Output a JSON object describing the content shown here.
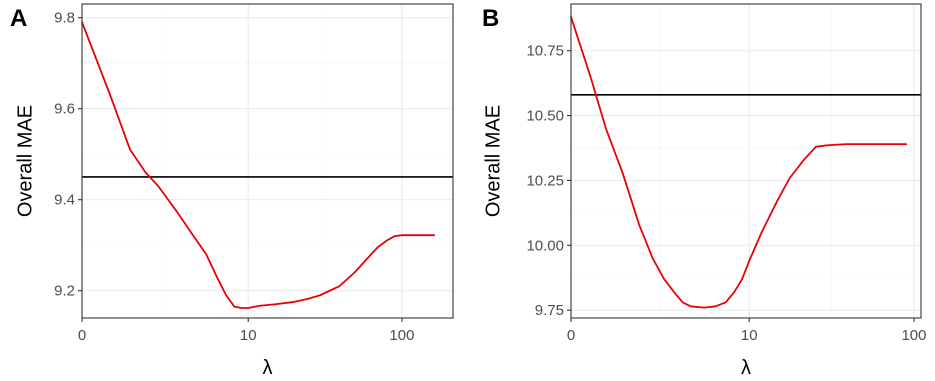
{
  "colors": {
    "curve": "#e8000b",
    "reference": "#000000"
  },
  "chart_data": [
    {
      "type": "line",
      "panel_label": "A",
      "xlabel": "λ",
      "ylabel": "Overall MAE",
      "x_scale": "log1p",
      "x_ticks": [
        0,
        10,
        100
      ],
      "x_tick_labels": [
        "0",
        "10",
        "100"
      ],
      "y_ticks": [
        9.2,
        9.4,
        9.6,
        9.8
      ],
      "y_tick_labels": [
        "9.2",
        "9.4",
        "9.6",
        "9.8"
      ],
      "ylim": [
        9.14,
        9.83
      ],
      "xlim": [
        0,
        210
      ],
      "grid": true,
      "series": [
        {
          "color": "#e8000b",
          "x": [
            0,
            0.5,
            1,
            1.5,
            2,
            3,
            4,
            5,
            6,
            7,
            8,
            9,
            10,
            12,
            15,
            20,
            25,
            30,
            40,
            50,
            60,
            70,
            80,
            90,
            100,
            120,
            140,
            160
          ],
          "y": [
            9.79,
            9.63,
            9.51,
            9.46,
            9.43,
            9.37,
            9.32,
            9.28,
            9.23,
            9.19,
            9.165,
            9.162,
            9.162,
            9.167,
            9.17,
            9.175,
            9.182,
            9.19,
            9.21,
            9.24,
            9.27,
            9.295,
            9.31,
            9.32,
            9.322,
            9.322,
            9.322,
            9.322
          ]
        }
      ],
      "reference_line": {
        "y": 9.45
      }
    },
    {
      "type": "line",
      "panel_label": "B",
      "xlabel": "λ",
      "ylabel": "Overall MAE",
      "x_scale": "log1p",
      "x_ticks": [
        0,
        10,
        100
      ],
      "x_tick_labels": [
        "0",
        "10",
        "100"
      ],
      "y_ticks": [
        9.75,
        10.0,
        10.25,
        10.5,
        10.75
      ],
      "y_tick_labels": [
        "9.75",
        "10.00",
        "10.25",
        "10.50",
        "10.75"
      ],
      "ylim": [
        9.72,
        10.93
      ],
      "xlim": [
        0,
        110
      ],
      "grid": true,
      "series": [
        {
          "color": "#e8000b",
          "x": [
            0,
            0.3,
            0.6,
            1,
            1.5,
            2,
            2.5,
            3,
            3.5,
            4,
            5,
            6,
            7,
            8,
            9,
            10,
            12,
            15,
            18,
            22,
            26,
            30,
            35,
            40,
            50,
            60,
            70,
            80,
            90
          ],
          "y": [
            10.88,
            10.65,
            10.45,
            10.28,
            10.08,
            9.95,
            9.87,
            9.82,
            9.78,
            9.765,
            9.76,
            9.765,
            9.78,
            9.82,
            9.87,
            9.94,
            10.05,
            10.17,
            10.26,
            10.33,
            10.38,
            10.385,
            10.388,
            10.39,
            10.39,
            10.39,
            10.39,
            10.39,
            10.39
          ]
        }
      ],
      "reference_line": {
        "y": 10.58
      }
    }
  ]
}
